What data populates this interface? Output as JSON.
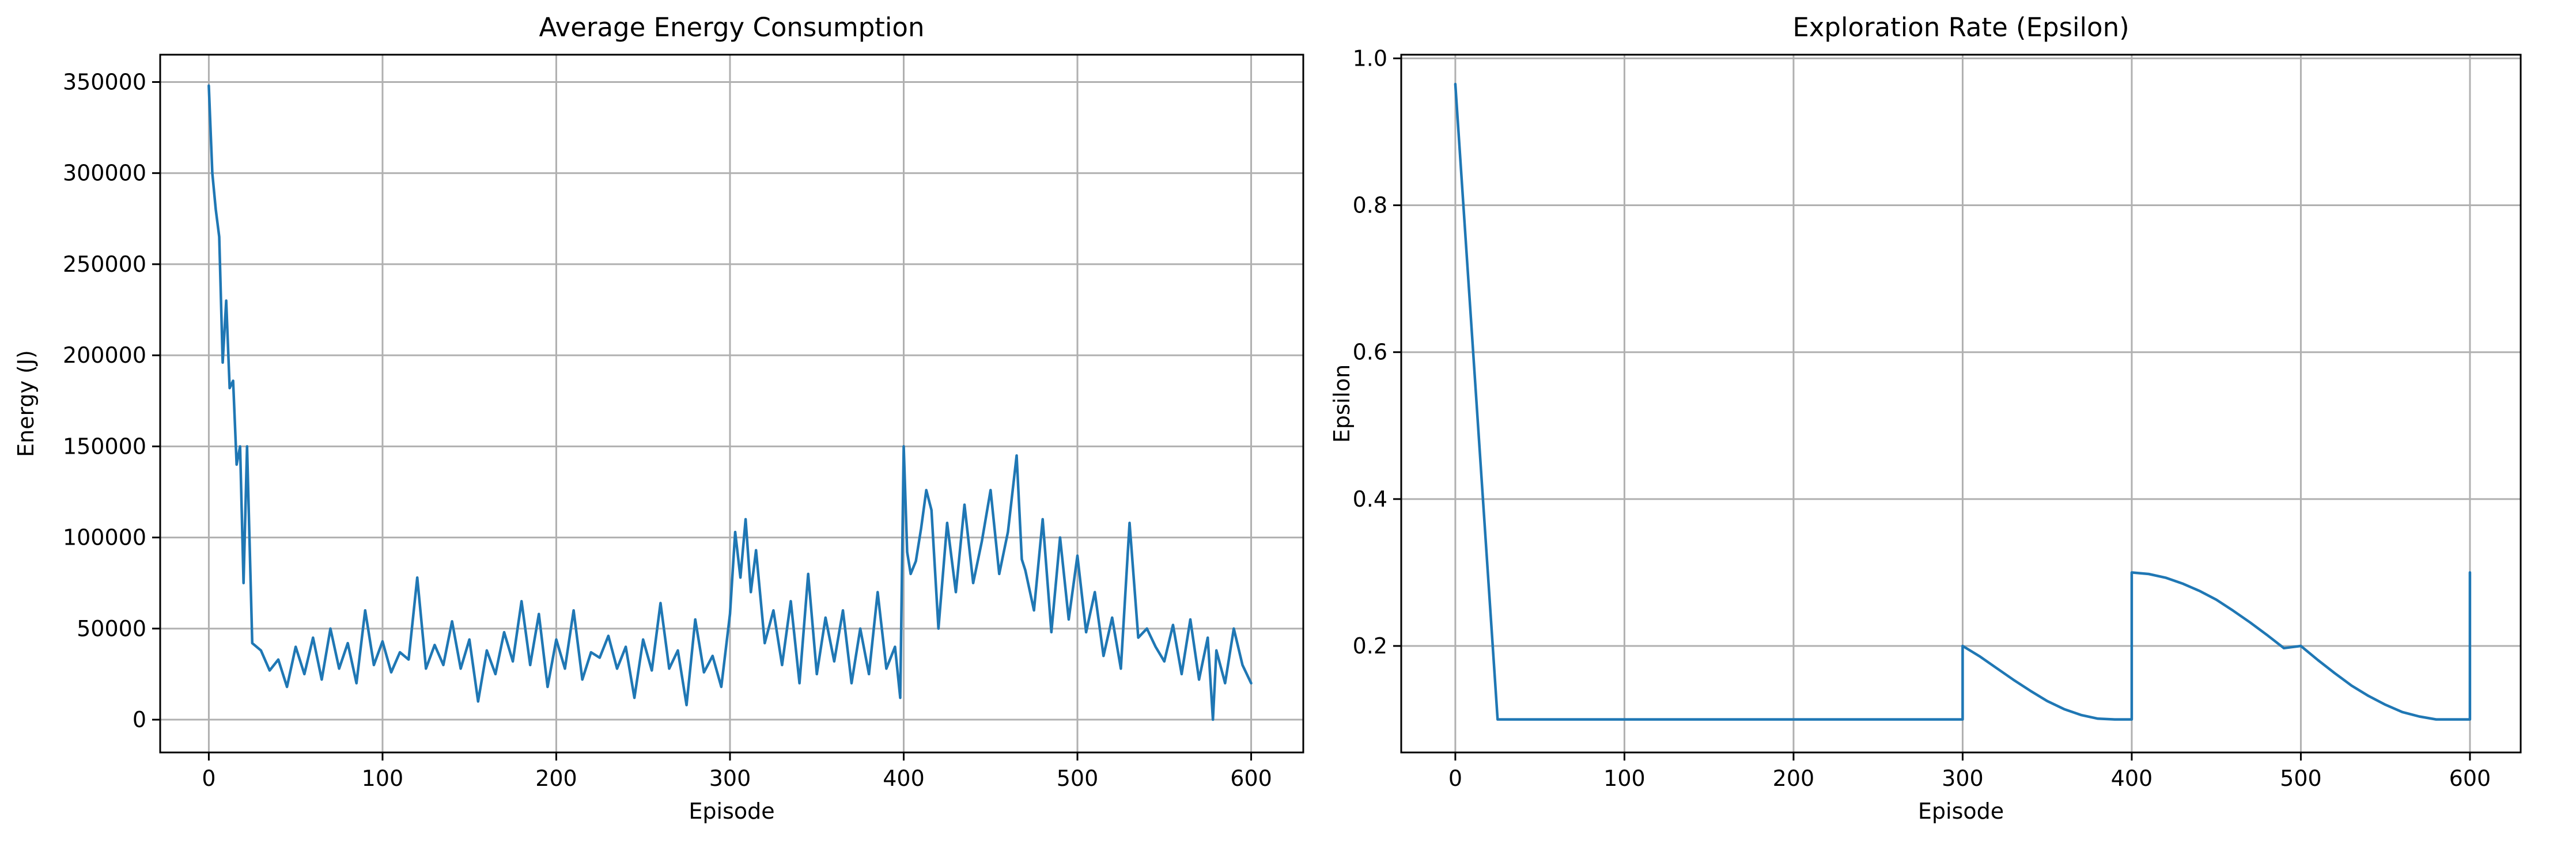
{
  "chart_data": [
    {
      "type": "line",
      "title": "Average Energy Consumption",
      "xlabel": "Episode",
      "ylabel": "Energy (J)",
      "xlim": [
        -28,
        630
      ],
      "ylim": [
        -18000,
        365000
      ],
      "xticks": [
        0,
        100,
        200,
        300,
        400,
        500,
        600
      ],
      "yticks": [
        0,
        50000,
        100000,
        150000,
        200000,
        250000,
        300000,
        350000
      ],
      "grid": true,
      "color": "#1f77b4",
      "x": [
        0,
        2,
        4,
        6,
        8,
        10,
        12,
        14,
        16,
        18,
        20,
        22,
        25,
        30,
        35,
        40,
        45,
        50,
        55,
        60,
        65,
        70,
        75,
        80,
        85,
        90,
        95,
        100,
        105,
        110,
        115,
        120,
        125,
        130,
        135,
        140,
        145,
        150,
        155,
        160,
        165,
        170,
        175,
        180,
        185,
        190,
        195,
        200,
        205,
        210,
        215,
        220,
        225,
        230,
        235,
        240,
        245,
        250,
        255,
        260,
        265,
        270,
        275,
        280,
        285,
        290,
        295,
        300,
        303,
        306,
        309,
        312,
        315,
        320,
        325,
        330,
        335,
        340,
        345,
        350,
        355,
        360,
        365,
        370,
        375,
        380,
        385,
        390,
        395,
        398,
        400,
        402,
        404,
        407,
        410,
        413,
        416,
        420,
        425,
        430,
        435,
        440,
        445,
        450,
        455,
        460,
        465,
        468,
        470,
        475,
        480,
        485,
        490,
        495,
        500,
        505,
        510,
        515,
        520,
        525,
        530,
        535,
        540,
        545,
        550,
        555,
        560,
        565,
        570,
        575,
        578,
        580,
        585,
        590,
        595,
        600
      ],
      "y": [
        348000,
        300000,
        280000,
        265000,
        196000,
        230000,
        182000,
        186000,
        140000,
        150000,
        75000,
        150000,
        42000,
        38000,
        27000,
        33000,
        18000,
        40000,
        25000,
        45000,
        22000,
        50000,
        28000,
        42000,
        20000,
        60000,
        30000,
        43000,
        26000,
        37000,
        33000,
        78000,
        28000,
        41000,
        30000,
        54000,
        28000,
        44000,
        10000,
        38000,
        25000,
        48000,
        32000,
        65000,
        30000,
        58000,
        18000,
        44000,
        28000,
        60000,
        22000,
        37000,
        34000,
        46000,
        28000,
        40000,
        12000,
        44000,
        27000,
        64000,
        28000,
        38000,
        8000,
        55000,
        26000,
        35000,
        18000,
        58000,
        103000,
        78000,
        110000,
        70000,
        93000,
        42000,
        60000,
        30000,
        65000,
        20000,
        80000,
        25000,
        56000,
        32000,
        60000,
        20000,
        50000,
        25000,
        70000,
        28000,
        40000,
        12000,
        150000,
        92000,
        80000,
        87000,
        105000,
        126000,
        115000,
        50000,
        108000,
        70000,
        118000,
        75000,
        98000,
        126000,
        80000,
        103000,
        145000,
        88000,
        82000,
        60000,
        110000,
        48000,
        100000,
        55000,
        90000,
        48000,
        70000,
        35000,
        56000,
        28000,
        108000,
        45000,
        50000,
        40000,
        32000,
        52000,
        25000,
        55000,
        22000,
        45000,
        0,
        38000,
        20000,
        50000,
        30000,
        20000
      ]
    },
    {
      "type": "line",
      "title": "Exploration Rate (Epsilon)",
      "xlabel": "Episode",
      "ylabel": "Epsilon",
      "xlim": [
        -32,
        630
      ],
      "ylim": [
        0.055,
        1.005
      ],
      "xticks": [
        0,
        100,
        200,
        300,
        400,
        500,
        600
      ],
      "yticks": [
        0.2,
        0.4,
        0.6,
        0.8,
        1.0
      ],
      "grid": true,
      "color": "#1f77b4",
      "x": [
        0,
        25,
        100,
        200,
        300,
        300,
        310,
        320,
        330,
        340,
        350,
        360,
        370,
        380,
        390,
        400,
        400,
        410,
        420,
        430,
        440,
        450,
        460,
        470,
        480,
        490,
        500,
        510,
        520,
        530,
        540,
        550,
        560,
        570,
        580,
        590,
        600,
        600
      ],
      "y": [
        0.965,
        0.1,
        0.1,
        0.1,
        0.1,
        0.2,
        0.186,
        0.17,
        0.154,
        0.139,
        0.125,
        0.114,
        0.106,
        0.101,
        0.1,
        0.1,
        0.3,
        0.298,
        0.293,
        0.285,
        0.275,
        0.263,
        0.248,
        0.232,
        0.215,
        0.197,
        0.2,
        0.181,
        0.163,
        0.146,
        0.132,
        0.12,
        0.11,
        0.104,
        0.1,
        0.1,
        0.1,
        0.3
      ]
    }
  ]
}
